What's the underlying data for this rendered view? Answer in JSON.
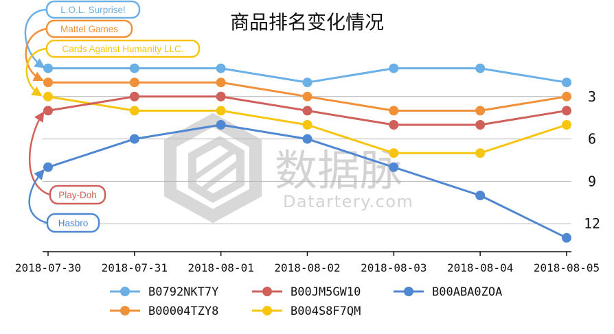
{
  "chart_data": {
    "type": "line",
    "title": "商品排名变化情况",
    "x": [
      "2018-07-30",
      "2018-07-31",
      "2018-08-01",
      "2018-08-02",
      "2018-08-03",
      "2018-08-04",
      "2018-08-05"
    ],
    "ylim": [
      14,
      0
    ],
    "y_inverted": true,
    "yticks": [
      3,
      6,
      9,
      12
    ],
    "grid": "horizontal",
    "legend_position": "bottom",
    "series": [
      {
        "name": "B0792NKT7Y",
        "color": "#6aafe6",
        "values": [
          1,
          1,
          1,
          2,
          1,
          1,
          2
        ]
      },
      {
        "name": "B00004TZY8",
        "color": "#f0913a",
        "values": [
          2,
          2,
          2,
          3,
          4,
          4,
          3
        ]
      },
      {
        "name": "B00JM5GW10",
        "color": "#d0605a",
        "values": [
          4,
          3,
          3,
          4,
          5,
          5,
          4
        ]
      },
      {
        "name": "B004S8F7QM",
        "color": "#f7c510",
        "values": [
          3,
          4,
          4,
          5,
          7,
          7,
          5
        ]
      },
      {
        "name": "B00ABA0ZOA",
        "color": "#5087d2",
        "values": [
          8,
          6,
          5,
          6,
          8,
          10,
          13
        ]
      }
    ],
    "annotations": [
      {
        "text": "L.O.L. Surprise!",
        "series": "B0792NKT7Y",
        "color": "#6aafe6"
      },
      {
        "text": "Mattel Games",
        "series": "B00004TZY8",
        "color": "#f0913a"
      },
      {
        "text": "Cards Against Humanity LLC.",
        "series": "B004S8F7QM",
        "color": "#f7c510"
      },
      {
        "text": "Play-Doh",
        "series": "B00JM5GW10",
        "color": "#d0605a"
      },
      {
        "text": "Hasbro",
        "series": "B00ABA0ZOA",
        "color": "#5087d2"
      }
    ],
    "watermark": {
      "main": "数据脉",
      "sub": "Datartery.com"
    }
  }
}
